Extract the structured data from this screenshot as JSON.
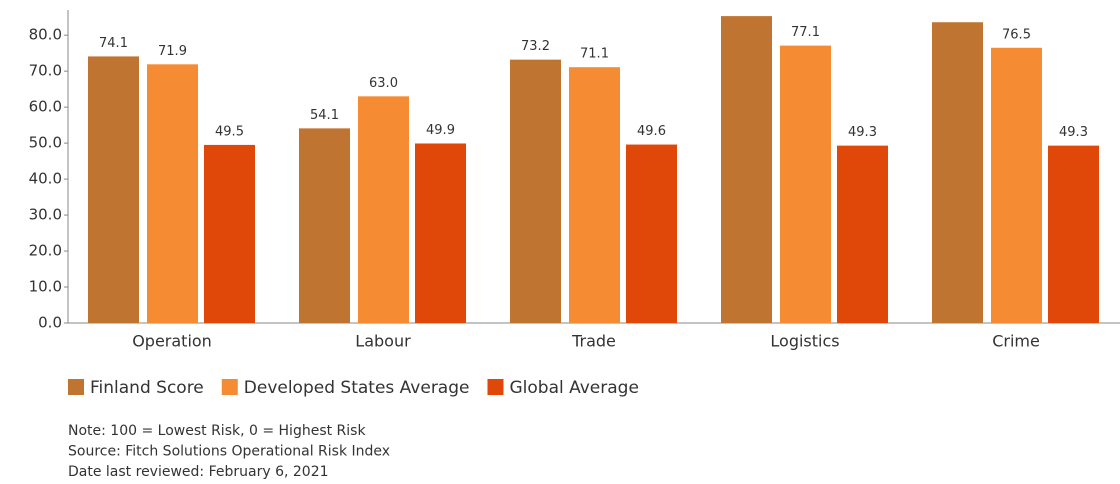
{
  "chart_data": {
    "type": "bar",
    "categories": [
      "Operation",
      "Labour",
      "Trade",
      "Logistics",
      "Crime"
    ],
    "series": [
      {
        "name": "Finland Score",
        "color": "#c07432",
        "values": [
          74.1,
          54.1,
          73.2,
          85.3,
          83.6
        ],
        "value_labels": [
          "74.1",
          "54.1",
          "73.2",
          null,
          null
        ]
      },
      {
        "name": "Developed States Average",
        "color": "#f58b32",
        "values": [
          71.9,
          63.0,
          71.1,
          77.1,
          76.5
        ],
        "value_labels": [
          "71.9",
          "63.0",
          "71.1",
          "77.1",
          "76.5"
        ]
      },
      {
        "name": "Global Average",
        "color": "#e0480a",
        "values": [
          49.5,
          49.9,
          49.6,
          49.3,
          49.3
        ],
        "value_labels": [
          "49.5",
          "49.9",
          "49.6",
          "49.3",
          "49.3"
        ]
      }
    ],
    "ylim": [
      0,
      87
    ],
    "yticks": [
      {
        "value": 0,
        "label": "0.0"
      },
      {
        "value": 10,
        "label": "10.0"
      },
      {
        "value": 20,
        "label": "20.0"
      },
      {
        "value": 30,
        "label": "30.0"
      },
      {
        "value": 40,
        "label": "40.0"
      },
      {
        "value": 50,
        "label": "50.0"
      },
      {
        "value": 60,
        "label": "60.0"
      },
      {
        "value": 70,
        "label": "70.0"
      },
      {
        "value": 80,
        "label": "80.0"
      }
    ],
    "legend": "bottom-left",
    "notes": [
      "Note: 100 = Lowest Risk, 0 = Highest Risk",
      "Source: Fitch Solutions Operational Risk Index",
      "Date last reviewed: February 6, 2021"
    ]
  }
}
